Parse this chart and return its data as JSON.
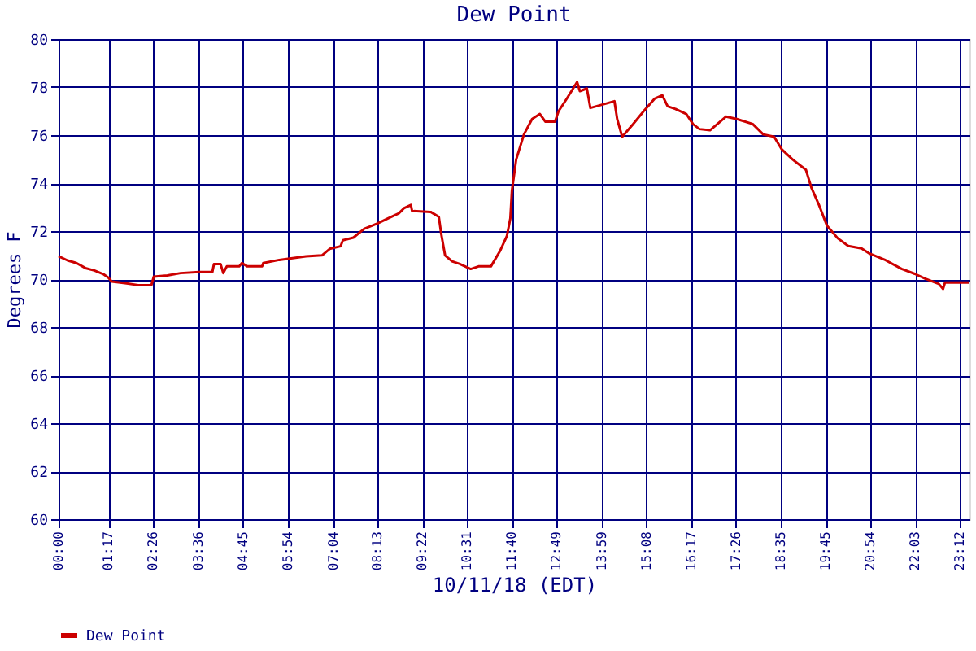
{
  "chart_data": {
    "type": "line",
    "title": "Dew Point",
    "xlabel": "10/11/18 (EDT)",
    "ylabel": "Degrees F",
    "xlim": [
      0,
      23.45
    ],
    "xticks": [
      {
        "value": 0,
        "label": "00:00"
      },
      {
        "value": 1.283,
        "label": "01:17"
      },
      {
        "value": 2.433,
        "label": "02:26"
      },
      {
        "value": 3.6,
        "label": "03:36"
      },
      {
        "value": 4.75,
        "label": "04:45"
      },
      {
        "value": 5.9,
        "label": "05:54"
      },
      {
        "value": 7.067,
        "label": "07:04"
      },
      {
        "value": 8.217,
        "label": "08:13"
      },
      {
        "value": 9.367,
        "label": "09:22"
      },
      {
        "value": 10.517,
        "label": "10:31"
      },
      {
        "value": 11.667,
        "label": "11:40"
      },
      {
        "value": 12.817,
        "label": "12:49"
      },
      {
        "value": 13.983,
        "label": "13:59"
      },
      {
        "value": 15.133,
        "label": "15:08"
      },
      {
        "value": 16.283,
        "label": "16:17"
      },
      {
        "value": 17.433,
        "label": "17:26"
      },
      {
        "value": 18.583,
        "label": "18:35"
      },
      {
        "value": 19.75,
        "label": "19:45"
      },
      {
        "value": 20.9,
        "label": "20:54"
      },
      {
        "value": 22.05,
        "label": "22:03"
      },
      {
        "value": 23.2,
        "label": "23:12"
      }
    ],
    "ylim": [
      60,
      80
    ],
    "yticks": [
      60,
      62,
      64,
      66,
      68,
      70,
      72,
      74,
      76,
      78,
      80
    ],
    "grid": true,
    "legend": "bottom",
    "marker": "none",
    "line_style": "solid",
    "series": [
      {
        "name": "Dew Point",
        "color": "#cc0000",
        "x": [
          0,
          0.23,
          0.46,
          0.69,
          0.92,
          1.15,
          1.283,
          1.37,
          1.71,
          2.05,
          2.39,
          2.45,
          2.8,
          3.14,
          3.62,
          3.96,
          4.0,
          4.17,
          4.24,
          4.33,
          4.65,
          4.72,
          4.86,
          5.24,
          5.27,
          5.68,
          6.37,
          6.78,
          6.98,
          7.26,
          7.32,
          7.59,
          7.87,
          8.21,
          8.48,
          8.76,
          8.89,
          9.07,
          9.1,
          9.58,
          9.79,
          9.85,
          9.95,
          10.13,
          10.33,
          10.61,
          10.81,
          11.13,
          11.36,
          11.54,
          11.63,
          11.67,
          11.78,
          11.98,
          12.19,
          12.39,
          12.53,
          12.78,
          12.87,
          13.08,
          13.35,
          13.42,
          13.6,
          13.69,
          14.31,
          14.38,
          14.51,
          14.79,
          15.06,
          15.34,
          15.54,
          15.68,
          15.88,
          16.16,
          16.33,
          16.5,
          16.77,
          17.18,
          17.46,
          17.87,
          18.14,
          18.42,
          18.62,
          18.9,
          19.24,
          19.38,
          19.58,
          19.78,
          20.06,
          20.33,
          20.67,
          20.88,
          21.29,
          21.7,
          22.04,
          22.32,
          22.66,
          22.77,
          22.82,
          23.45
        ],
        "values": [
          70.95,
          70.78,
          70.67,
          70.46,
          70.36,
          70.21,
          70.06,
          69.9,
          69.83,
          69.75,
          69.75,
          70.1,
          70.15,
          70.25,
          70.3,
          70.3,
          70.63,
          70.63,
          70.25,
          70.53,
          70.53,
          70.67,
          70.53,
          70.53,
          70.67,
          70.8,
          70.95,
          70.99,
          71.26,
          71.37,
          71.62,
          71.73,
          72.1,
          72.32,
          72.53,
          72.74,
          72.95,
          73.09,
          72.84,
          72.8,
          72.59,
          71.89,
          70.99,
          70.74,
          70.63,
          70.42,
          70.53,
          70.53,
          71.16,
          71.79,
          72.53,
          73.68,
          74.98,
          76.03,
          76.67,
          76.88,
          76.56,
          76.56,
          76.99,
          77.51,
          78.21,
          77.83,
          77.94,
          77.13,
          77.41,
          76.67,
          75.93,
          76.46,
          76.99,
          77.51,
          77.66,
          77.2,
          77.09,
          76.88,
          76.46,
          76.25,
          76.2,
          76.77,
          76.67,
          76.46,
          76.03,
          75.93,
          75.4,
          74.98,
          74.55,
          73.81,
          73.07,
          72.23,
          71.7,
          71.38,
          71.28,
          71.06,
          70.79,
          70.43,
          70.22,
          70.01,
          69.8,
          69.59,
          69.86,
          69.86
        ]
      }
    ]
  }
}
